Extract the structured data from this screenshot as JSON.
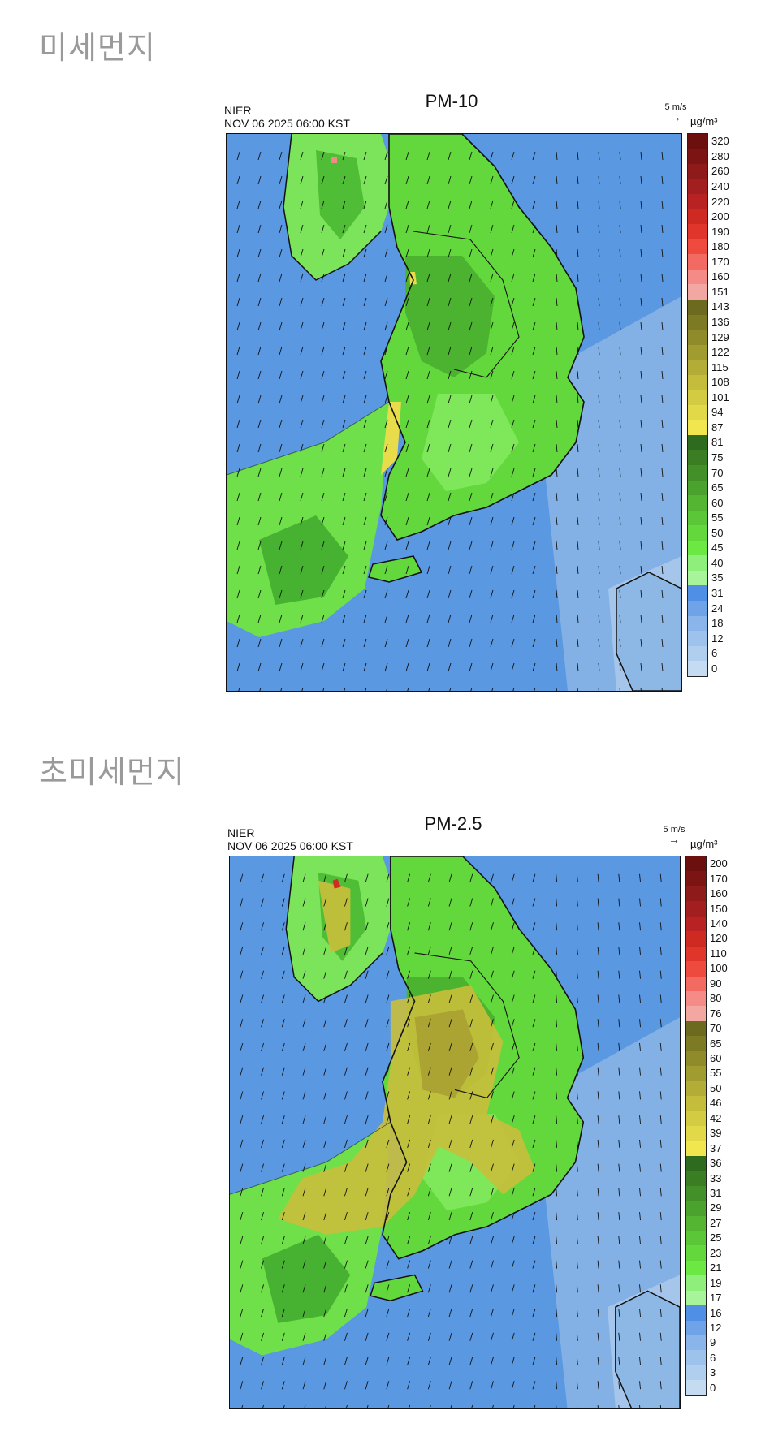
{
  "sections": [
    {
      "heading": "미세먼지",
      "agency": "NIER",
      "datetime": "NOV 06 2025 06:00 KST",
      "title": "PM-10",
      "wind_ref": "5 m/s",
      "unit": "µg/m³",
      "colorbar": {
        "labels": [
          "320",
          "280",
          "260",
          "240",
          "220",
          "200",
          "190",
          "180",
          "170",
          "160",
          "151",
          "143",
          "136",
          "129",
          "122",
          "115",
          "108",
          "101",
          "94",
          "87",
          "81",
          "75",
          "70",
          "65",
          "60",
          "55",
          "50",
          "45",
          "40",
          "35",
          "31",
          "24",
          "18",
          "12",
          "6",
          "0"
        ],
        "colors": [
          "#6b0f0f",
          "#7d1414",
          "#8f1a1a",
          "#a31e1e",
          "#b82222",
          "#cf2a22",
          "#e0352b",
          "#ee4a3e",
          "#f36a62",
          "#f48b86",
          "#f2a7a3",
          "#6b6a1e",
          "#7d7a24",
          "#8f8b2a",
          "#a19c30",
          "#b3ac36",
          "#c4bd3c",
          "#d3cb42",
          "#e2d948",
          "#f2e64e",
          "#2f6b1e",
          "#3a7d23",
          "#438f28",
          "#4ba32d",
          "#53b532",
          "#5bc637",
          "#63d83c",
          "#6be841",
          "#8ef07a",
          "#a8f49a",
          "#4f8fe6",
          "#6fa3e8",
          "#8ab5ea",
          "#9dc2ec",
          "#b0ceee",
          "#c4dbf1"
        ]
      }
    },
    {
      "heading": "초미세먼지",
      "agency": "NIER",
      "datetime": "NOV 06 2025 06:00 KST",
      "title": "PM-2.5",
      "wind_ref": "5 m/s",
      "unit": "µg/m³",
      "colorbar": {
        "labels": [
          "200",
          "170",
          "160",
          "150",
          "140",
          "120",
          "110",
          "100",
          "90",
          "80",
          "76",
          "70",
          "65",
          "60",
          "55",
          "50",
          "46",
          "42",
          "39",
          "37",
          "36",
          "33",
          "31",
          "29",
          "27",
          "25",
          "23",
          "21",
          "19",
          "17",
          "16",
          "12",
          "9",
          "6",
          "3",
          "0"
        ],
        "colors": [
          "#6b0f0f",
          "#7d1414",
          "#8f1a1a",
          "#a31e1e",
          "#b82222",
          "#cf2a22",
          "#e0352b",
          "#ee4a3e",
          "#f36a62",
          "#f48b86",
          "#f2a7a3",
          "#6b6a1e",
          "#7d7a24",
          "#8f8b2a",
          "#a19c30",
          "#b3ac36",
          "#c4bd3c",
          "#d3cb42",
          "#e2d948",
          "#f2e64e",
          "#2f6b1e",
          "#3a7d23",
          "#438f28",
          "#4ba32d",
          "#53b532",
          "#5bc637",
          "#63d83c",
          "#6be841",
          "#8ef07a",
          "#a8f49a",
          "#4f8fe6",
          "#6fa3e8",
          "#8ab5ea",
          "#9dc2ec",
          "#b0ceee",
          "#c4dbf1"
        ]
      }
    }
  ]
}
